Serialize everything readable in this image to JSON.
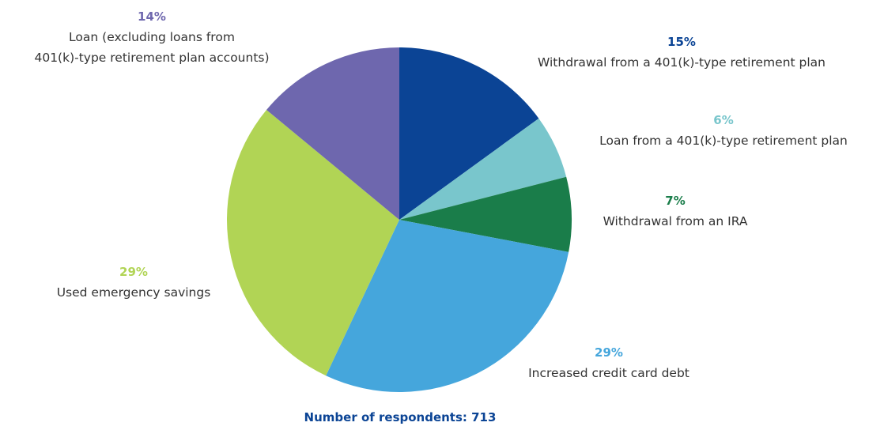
{
  "chart_data": {
    "type": "pie",
    "title": "",
    "start_angle_deg": 0,
    "direction": "clockwise",
    "slices": [
      {
        "label": "Withdrawal from a 401(k)-type retirement plan",
        "pct_text": "15%",
        "value": 15,
        "color": "#0b4495"
      },
      {
        "label": "Loan from a 401(k)-type retirement plan",
        "pct_text": "6%",
        "value": 6,
        "color": "#79c6cc"
      },
      {
        "label": "Withdrawal from an IRA",
        "pct_text": "7%",
        "value": 7,
        "color": "#1a7d4a"
      },
      {
        "label": "Increased credit card debt",
        "pct_text": "29%",
        "value": 29,
        "color": "#45a6dc"
      },
      {
        "label": "Used emergency savings",
        "pct_text": "29%",
        "value": 29,
        "color": "#b1d455"
      },
      {
        "label": "Loan (excluding loans from 401(k)-type retirement plan accounts)",
        "label_lines": [
          "Loan (excluding loans from",
          "401(k)-type retirement plan accounts)"
        ],
        "pct_text": "14%",
        "value": 14,
        "color": "#6e67ae"
      }
    ],
    "footnote": "Number of respondents: 713",
    "footnote_color": "#0b4495"
  }
}
